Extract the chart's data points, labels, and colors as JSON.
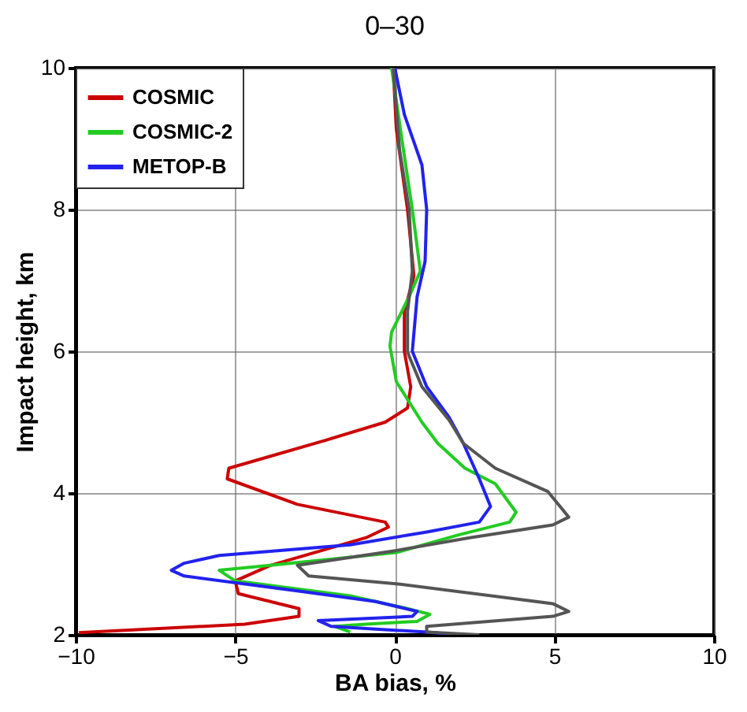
{
  "chart_data": {
    "type": "line",
    "title": "0–30",
    "xlabel": "BA bias, %",
    "ylabel": "Impact height, km",
    "xlim": [
      -10,
      10
    ],
    "xticks": [
      -10,
      -5,
      0,
      5,
      10
    ],
    "ylim": [
      2,
      10
    ],
    "yticks": [
      2,
      4,
      6,
      8,
      10
    ],
    "grid": true,
    "legend": "top left",
    "line_style": "solid",
    "series": [
      {
        "name": "COSMIC",
        "color": "#cc0000",
        "x": [
          -0.05,
          0.05,
          0.4,
          0.6,
          0.3,
          0.3,
          0.5,
          0.4,
          -0.3,
          -2.2,
          -5.2,
          -5.25,
          -3.05,
          -0.3,
          -0.2,
          -0.9,
          -3.9,
          -5.0,
          -4.9,
          -3.0,
          -3.0,
          -4.7,
          -9.9
        ],
        "values": [
          10,
          9.13,
          8,
          7.06,
          6.56,
          6,
          5.5,
          5.2,
          5.0,
          4.74,
          4.35,
          4.2,
          3.84,
          3.59,
          3.52,
          3.37,
          2.98,
          2.76,
          2.58,
          2.37,
          2.26,
          2.15,
          2.03
        ]
      },
      {
        "name": "COSMIC-2",
        "color": "#22cc22",
        "x": [
          -0.1,
          0.2,
          0.55,
          0.8,
          0.45,
          -0.1,
          -0.15,
          0.05,
          0.85,
          1.35,
          2.2,
          3.15,
          3.8,
          3.6,
          2.0,
          0.05,
          -3.9,
          -5.5,
          -5.0,
          -1.4,
          0.3,
          1.1,
          0.7,
          -0.9,
          -1.9,
          -1.4
        ],
        "values": [
          10,
          9.06,
          8,
          7.13,
          6.77,
          6.27,
          6.07,
          5.57,
          5.0,
          4.7,
          4.35,
          4.13,
          3.73,
          3.59,
          3.41,
          3.16,
          2.98,
          2.91,
          2.76,
          2.55,
          2.38,
          2.29,
          2.19,
          2.15,
          2.12,
          2.04
        ]
      },
      {
        "name": "METOP-B",
        "color": "#2222ee",
        "x": [
          0,
          0.3,
          0.85,
          1.0,
          0.95,
          0.7,
          0.55,
          1.0,
          1.7,
          2.15,
          2.65,
          3.0,
          2.65,
          1.0,
          -1.4,
          -5.5,
          -6.6,
          -7.0,
          -6.6,
          -3.05,
          -0.6,
          0.7,
          0.55,
          -2.4,
          -2.0,
          -0.6,
          1.0,
          2.0
        ],
        "values": [
          10,
          9.34,
          8.63,
          8,
          7.27,
          6.77,
          6,
          5.5,
          5.07,
          4.7,
          4.2,
          3.81,
          3.59,
          3.45,
          3.27,
          3.12,
          3.01,
          2.91,
          2.83,
          2.62,
          2.47,
          2.33,
          2.26,
          2.2,
          2.12,
          2.08,
          2.04,
          2.0
        ]
      },
      {
        "color": "#555555",
        "x": [
          -0.05,
          0.15,
          0.45,
          0.55,
          0.4,
          0.4,
          0.45,
          0.85,
          1.7,
          2.15,
          3.15,
          4.8,
          5.45,
          4.95,
          2.35,
          0.05,
          -3.05,
          -2.7,
          0.05,
          4.95,
          5.45,
          4.95,
          1.0,
          1.0,
          2.65
        ],
        "values": [
          10,
          8.84,
          8,
          7.13,
          6.56,
          6,
          5.93,
          5.5,
          5.03,
          4.7,
          4.35,
          4.02,
          3.66,
          3.55,
          3.37,
          3.19,
          2.98,
          2.83,
          2.72,
          2.44,
          2.33,
          2.26,
          2.12,
          2.04,
          2.0
        ]
      }
    ]
  }
}
